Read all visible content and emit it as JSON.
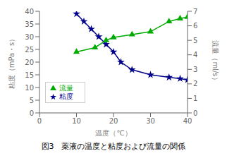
{
  "chart_data": {
    "type": "line",
    "title": "図3　薬液の温度と粘度および流量の関係",
    "x_label": "温度（℃）",
    "y_label": "粘度（mPa・s）",
    "y2_label": "流量（ml/s）",
    "xlim": [
      0,
      40
    ],
    "xticks": [
      0,
      10,
      20,
      30,
      40
    ],
    "ylim": [
      0,
      40
    ],
    "yticks": [
      0,
      5,
      10,
      15,
      20,
      25,
      30,
      35,
      40
    ],
    "y2lim": [
      0,
      7
    ],
    "y2ticks": [
      0,
      1,
      2,
      3,
      4,
      5,
      6,
      7
    ],
    "grid": false,
    "legend": "lower left",
    "series": [
      {
        "name": "粘度",
        "color": "#00008B",
        "marker": "star",
        "x": [
          10,
          12,
          14,
          16,
          18,
          20,
          22,
          25,
          30,
          35,
          38,
          40
        ],
        "values": [
          39,
          36,
          33,
          30,
          27,
          24,
          20,
          17,
          15,
          14,
          13.5,
          13
        ]
      },
      {
        "name": "流量",
        "color": "#00AA00",
        "marker": "triangle",
        "axis": "y2",
        "x": [
          10,
          15,
          18,
          20,
          25,
          30,
          35,
          38,
          40
        ],
        "values": [
          4.2,
          4.5,
          5.0,
          5.2,
          5.4,
          5.6,
          6.3,
          6.5,
          6.6
        ]
      }
    ]
  }
}
